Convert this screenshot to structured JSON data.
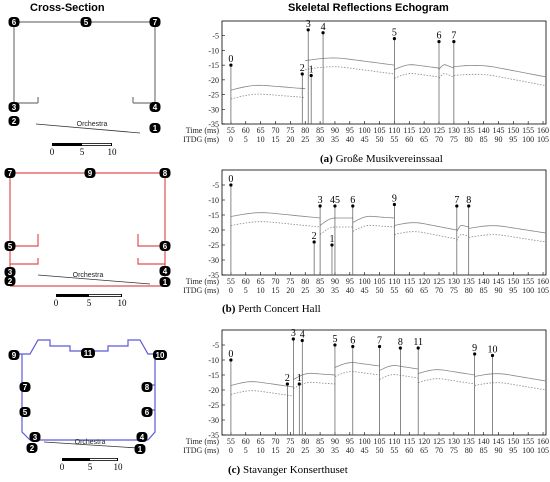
{
  "header": {
    "left_title": "Cross-Section",
    "right_title": "Skeletal Reflections Echogram"
  },
  "axis_labels": {
    "time": "Time (ms)",
    "itdg": "ITDG (ms)"
  },
  "scale_bar_labels": [
    "0",
    "5",
    "10"
  ],
  "panels": [
    {
      "caption_letter": "(a)",
      "caption_text": "Große Musikvereinssaal",
      "outline_color": "#777777",
      "orchestra_label": "Orchestra",
      "mic_labels": [
        "1",
        "2",
        "3",
        "4",
        "5",
        "6",
        "7"
      ],
      "time_ticks": [
        "55",
        "60",
        "65",
        "70",
        "75",
        "80",
        "85",
        "90",
        "95",
        "100",
        "105",
        "110",
        "115",
        "120",
        "125",
        "130",
        "135",
        "140",
        "145",
        "150",
        "155",
        "160"
      ],
      "itdg_ticks": [
        "0",
        "5",
        "10",
        "15",
        "20",
        "25",
        "30",
        "35",
        "40",
        "45",
        "50",
        "55",
        "60",
        "65",
        "70",
        "75",
        "80",
        "85",
        "90",
        "95",
        "100",
        "105"
      ],
      "y_ticks": [
        "0",
        "-5",
        "-10",
        "-15",
        "-20",
        "-25",
        "-30",
        "-35"
      ]
    },
    {
      "caption_letter": "(b)",
      "caption_text": "Perth Concert Hall",
      "outline_color": "#e05050",
      "orchestra_label": "Orchestra",
      "mic_labels": [
        "1",
        "2",
        "3",
        "4",
        "5",
        "6",
        "7",
        "8",
        "9"
      ],
      "time_ticks": [
        "55",
        "60",
        "65",
        "70",
        "75",
        "80",
        "85",
        "90",
        "95",
        "100",
        "105",
        "110",
        "115",
        "120",
        "125",
        "130",
        "135",
        "140",
        "145",
        "150",
        "155",
        "160"
      ],
      "itdg_ticks": [
        "0",
        "5",
        "10",
        "15",
        "20",
        "25",
        "30",
        "35",
        "40",
        "45",
        "50",
        "55",
        "60",
        "65",
        "70",
        "75",
        "80",
        "85",
        "90",
        "95",
        "100",
        "105"
      ],
      "y_ticks": [
        "0",
        "-5",
        "-10",
        "-15",
        "-20",
        "-25",
        "-30",
        "-35"
      ]
    },
    {
      "caption_letter": "(c)",
      "caption_text": "Stavanger Konserthuset",
      "outline_color": "#5a5ad8",
      "orchestra_label": "Orchestra",
      "mic_labels": [
        "1",
        "2",
        "3",
        "4",
        "5",
        "6",
        "7",
        "8",
        "9",
        "10",
        "11"
      ],
      "time_ticks": [
        "55",
        "60",
        "65",
        "70",
        "75",
        "80",
        "85",
        "90",
        "95",
        "100",
        "105",
        "110",
        "115",
        "120",
        "125",
        "130",
        "135",
        "140",
        "145",
        "150",
        "155",
        "160"
      ],
      "itdg_ticks": [
        "0",
        "5",
        "10",
        "15",
        "20",
        "25",
        "30",
        "35",
        "40",
        "45",
        "50",
        "55",
        "60",
        "65",
        "70",
        "75",
        "80",
        "85",
        "90",
        "95",
        "100",
        "105"
      ],
      "y_ticks": [
        "0",
        "-5",
        "-10",
        "-15",
        "-20",
        "-25",
        "-30",
        "-35"
      ]
    }
  ],
  "chart_data": [
    {
      "type": "echogram",
      "title": "Große Musikvereinssaal",
      "x_time_range": [
        52,
        161
      ],
      "y_range": [
        -35,
        0
      ],
      "direct_time": 55,
      "reflections": [
        {
          "label": "0",
          "t": 55,
          "db": -15
        },
        {
          "label": "2",
          "t": 79,
          "db": -18
        },
        {
          "label": "3",
          "t": 81,
          "db": -3
        },
        {
          "label": "1",
          "t": 82,
          "db": -18.5
        },
        {
          "label": "4",
          "t": 86,
          "db": -4
        },
        {
          "label": "5",
          "t": 110,
          "db": -6
        },
        {
          "label": "6",
          "t": 125,
          "db": -7
        },
        {
          "label": "7",
          "t": 130,
          "db": -7
        }
      ],
      "decay_segments": [
        {
          "t": [
            55,
            80
          ],
          "db": [
            -21,
            -23
          ]
        },
        {
          "t": [
            80,
            110
          ],
          "db": [
            -11,
            -15
          ]
        },
        {
          "t": [
            110,
            125
          ],
          "db": [
            -14,
            -16
          ]
        },
        {
          "t": [
            125,
            130
          ],
          "db": [
            -14,
            -16
          ]
        },
        {
          "t": [
            130,
            161
          ],
          "db": [
            -13,
            -19
          ]
        }
      ]
    },
    {
      "type": "echogram",
      "title": "Perth Concert Hall",
      "x_time_range": [
        52,
        161
      ],
      "y_range": [
        -35,
        0
      ],
      "direct_time": 55,
      "reflections": [
        {
          "label": "0",
          "t": 55,
          "db": -5
        },
        {
          "label": "2",
          "t": 83,
          "db": -24
        },
        {
          "label": "3",
          "t": 85,
          "db": -12
        },
        {
          "label": "1",
          "t": 89,
          "db": -25
        },
        {
          "label": "45",
          "t": 90,
          "db": -12
        },
        {
          "label": "6",
          "t": 96,
          "db": -12
        },
        {
          "label": "9",
          "t": 110,
          "db": -11.5
        },
        {
          "label": "7",
          "t": 131,
          "db": -12
        },
        {
          "label": "8",
          "t": 135,
          "db": -12
        }
      ],
      "decay_segments": [
        {
          "t": [
            55,
            85
          ],
          "db": [
            -13,
            -16
          ]
        },
        {
          "t": [
            85,
            96
          ],
          "db": [
            -16,
            -16
          ]
        },
        {
          "t": [
            96,
            110
          ],
          "db": [
            -15,
            -16
          ]
        },
        {
          "t": [
            110,
            131
          ],
          "db": [
            -16,
            -20
          ]
        },
        {
          "t": [
            131,
            135
          ],
          "db": [
            -18,
            -19
          ]
        },
        {
          "t": [
            135,
            161
          ],
          "db": [
            -17,
            -21
          ]
        }
      ]
    },
    {
      "type": "echogram",
      "title": "Stavanger Konserthuset",
      "x_time_range": [
        52,
        161
      ],
      "y_range": [
        -35,
        0
      ],
      "direct_time": 55,
      "reflections": [
        {
          "label": "0",
          "t": 55,
          "db": -10
        },
        {
          "label": "2",
          "t": 74,
          "db": -18
        },
        {
          "label": "3",
          "t": 76,
          "db": -3
        },
        {
          "label": "1",
          "t": 78,
          "db": -18
        },
        {
          "label": "4",
          "t": 79,
          "db": -3.5
        },
        {
          "label": "5",
          "t": 90,
          "db": -5
        },
        {
          "label": "6",
          "t": 96,
          "db": -5.5
        },
        {
          "label": "7",
          "t": 105,
          "db": -5.5
        },
        {
          "label": "8",
          "t": 112,
          "db": -6
        },
        {
          "label": "11",
          "t": 118,
          "db": -6
        },
        {
          "label": "9",
          "t": 137,
          "db": -8
        },
        {
          "label": "10",
          "t": 143,
          "db": -8.5
        }
      ],
      "decay_segments": [
        {
          "t": [
            55,
            76
          ],
          "db": [
            -16,
            -19
          ]
        },
        {
          "t": [
            76,
            90
          ],
          "db": [
            -14,
            -15
          ]
        },
        {
          "t": [
            90,
            105
          ],
          "db": [
            -10,
            -12
          ]
        },
        {
          "t": [
            105,
            118
          ],
          "db": [
            -11,
            -13
          ]
        },
        {
          "t": [
            118,
            137
          ],
          "db": [
            -12,
            -15
          ]
        },
        {
          "t": [
            137,
            161
          ],
          "db": [
            -13,
            -17
          ]
        }
      ]
    }
  ]
}
